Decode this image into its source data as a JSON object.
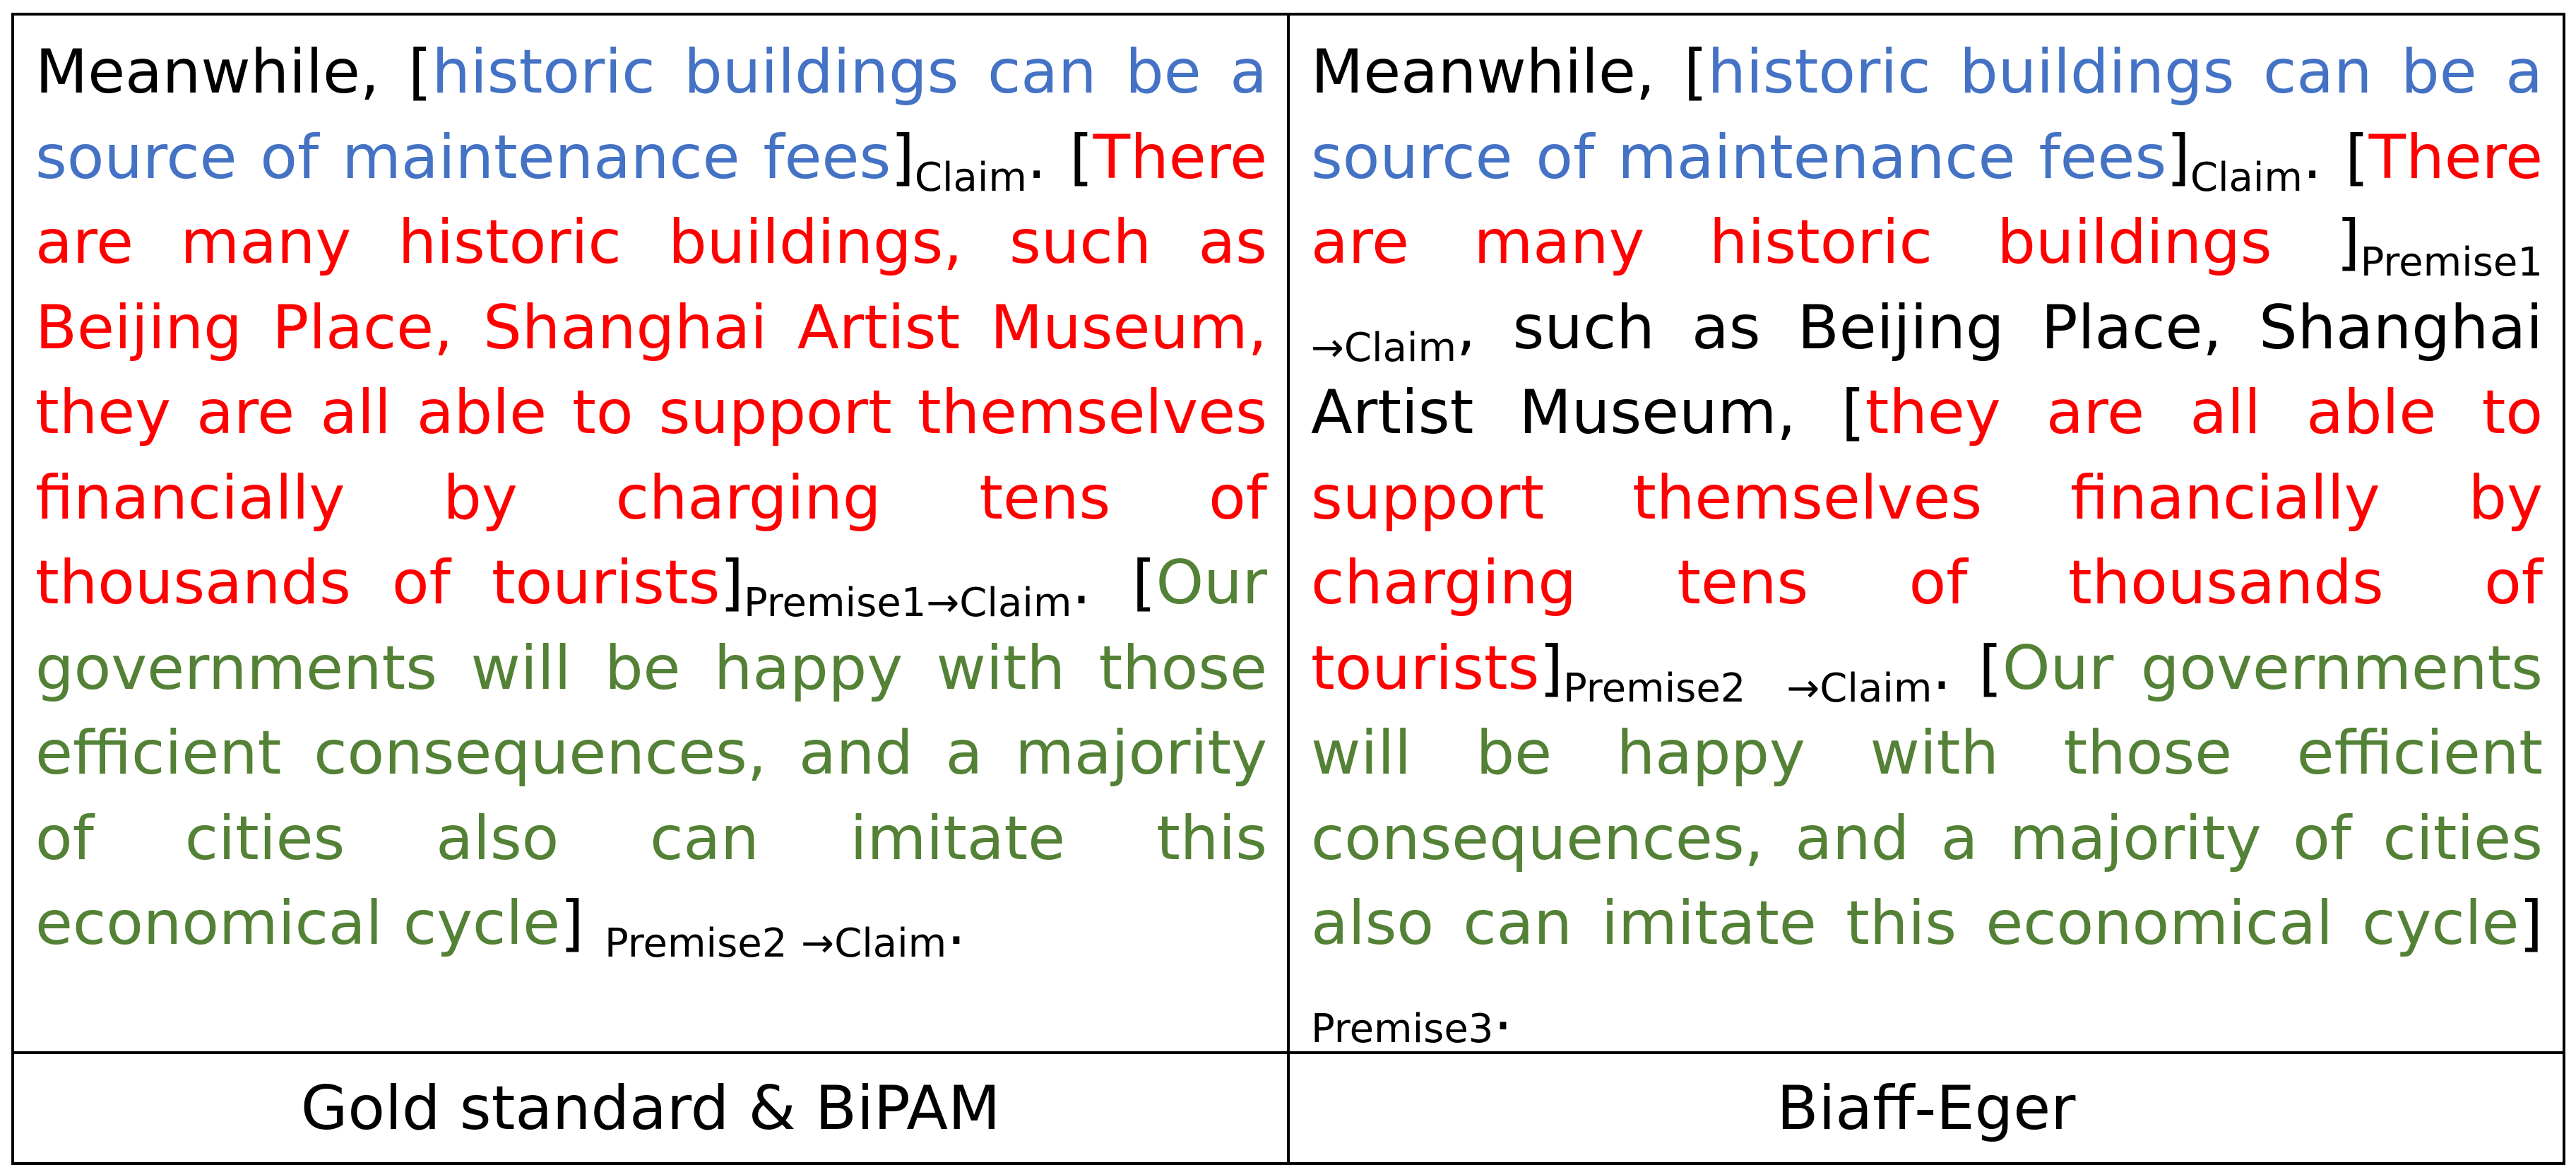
{
  "columns": [
    {
      "segments": [
        {
          "style": "plain",
          "text": "Meanwhile, "
        },
        {
          "style": "plain",
          "text": "["
        },
        {
          "style": "claim",
          "text": "historic buildings can be a source of maintenance fees"
        },
        {
          "style": "plain",
          "text": "]"
        },
        {
          "style": "tag",
          "text": "Claim"
        },
        {
          "style": "plain",
          "text": ". "
        },
        {
          "style": "plain",
          "text": "["
        },
        {
          "style": "premise-red",
          "text": "There are many historic buildings, such as Beijing Place, Shanghai Artist Museum, they are all able to support themselves financially by charging tens of thousands of tourists"
        },
        {
          "style": "plain",
          "text": "]"
        },
        {
          "style": "tag",
          "text": "Premise1→Claim"
        },
        {
          "style": "plain",
          "text": ". "
        },
        {
          "style": "plain",
          "text": "["
        },
        {
          "style": "premise-green",
          "text": "Our governments will be happy with those efficient consequences, and a majority of cities also can imitate this economical cycle"
        },
        {
          "style": "plain",
          "text": "] "
        },
        {
          "style": "tag",
          "text": "Premise2 →Claim"
        },
        {
          "style": "plain",
          "text": "."
        }
      ],
      "caption": "Gold standard & BiPAM"
    },
    {
      "segments": [
        {
          "style": "plain",
          "text": "Meanwhile, "
        },
        {
          "style": "plain",
          "text": "["
        },
        {
          "style": "claim",
          "text": "historic buildings can be a source of maintenance fees"
        },
        {
          "style": "plain",
          "text": "]"
        },
        {
          "style": "tag",
          "text": "Claim"
        },
        {
          "style": "plain",
          "text": ". "
        },
        {
          "style": "plain",
          "text": "["
        },
        {
          "style": "premise-red",
          "text": "There are many historic buildings "
        },
        {
          "style": "plain",
          "text": "]"
        },
        {
          "style": "tag",
          "text": "Premise1 →Claim"
        },
        {
          "style": "plain",
          "text": ", such as Beijing Place, Shanghai Artist Museum, "
        },
        {
          "style": "plain",
          "text": "["
        },
        {
          "style": "premise-red",
          "text": "they are all able to support themselves financially by charging tens of thousands of tourists"
        },
        {
          "style": "plain",
          "text": "]"
        },
        {
          "style": "tag",
          "text": "Premise2  →Claim"
        },
        {
          "style": "plain",
          "text": ". "
        },
        {
          "style": "plain",
          "text": "["
        },
        {
          "style": "premise-green",
          "text": "Our governments will be happy with those efficient consequences, and a majority of cities also can imitate this economical cycle"
        },
        {
          "style": "plain",
          "text": "] "
        },
        {
          "style": "tag",
          "text": "Premise3"
        },
        {
          "style": "plain",
          "text": "."
        }
      ],
      "caption": "Biaff-Eger"
    }
  ]
}
